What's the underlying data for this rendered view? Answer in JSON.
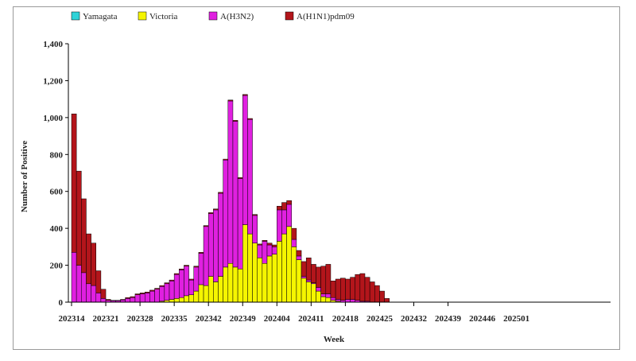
{
  "chart_data": {
    "type": "bar",
    "stacked": true,
    "title": "",
    "xlabel": "Week",
    "ylabel": "Number of Positive",
    "ylim": [
      0,
      1400
    ],
    "yticks": [
      0,
      200,
      400,
      600,
      800,
      1000,
      1200,
      1400
    ],
    "ytick_labels": [
      "0",
      "200",
      "400",
      "600",
      "800",
      "1,000",
      "1,200",
      "1,400"
    ],
    "grid": false,
    "legend_position": "top-left",
    "x_tick_labels": [
      "202314",
      "202321",
      "202328",
      "202335",
      "202342",
      "202349",
      "202404",
      "202411",
      "202418",
      "202425",
      "202432",
      "202439",
      "202446",
      "202501"
    ],
    "x_tick_every": 7,
    "total_weeks": 74,
    "colors": {
      "Yamagata": "#2fd3d8",
      "Victoria": "#f5f500",
      "A(H3N2)": "#e020e0",
      "A(H1N1)pdm09": "#b3151b"
    },
    "series": [
      {
        "name": "Yamagata",
        "values": [
          0,
          0,
          0,
          0,
          0,
          0,
          0,
          0,
          0,
          0,
          0,
          0,
          0,
          0,
          0,
          0,
          0,
          0,
          0,
          0,
          0,
          0,
          0,
          0,
          0,
          0,
          0,
          0,
          0,
          0,
          0,
          0,
          0,
          0,
          0,
          0,
          0,
          0,
          0,
          0,
          0,
          0,
          0,
          0,
          0,
          0,
          0,
          0,
          0,
          0,
          0,
          0,
          0,
          0,
          0,
          0,
          0,
          0,
          0,
          0,
          0,
          0,
          0,
          0,
          0,
          0,
          0,
          0,
          0,
          0,
          0,
          0,
          0,
          0
        ]
      },
      {
        "name": "Victoria",
        "values": [
          0,
          0,
          0,
          0,
          0,
          0,
          0,
          0,
          0,
          0,
          0,
          0,
          0,
          0,
          0,
          0,
          0,
          0,
          5,
          10,
          15,
          20,
          25,
          35,
          40,
          60,
          95,
          90,
          140,
          110,
          140,
          190,
          210,
          190,
          180,
          420,
          370,
          320,
          240,
          210,
          250,
          260,
          330,
          370,
          410,
          300,
          230,
          130,
          110,
          100,
          60,
          30,
          25,
          10,
          5,
          0,
          0,
          0,
          0,
          0,
          0,
          0,
          0,
          0,
          0,
          0,
          0,
          0,
          0,
          0,
          0,
          0,
          0,
          0
        ]
      },
      {
        "name": "A(H3N2)",
        "values": [
          270,
          200,
          160,
          100,
          90,
          50,
          20,
          10,
          8,
          8,
          12,
          20,
          25,
          40,
          45,
          50,
          60,
          70,
          80,
          90,
          100,
          130,
          150,
          160,
          80,
          130,
          170,
          320,
          340,
          390,
          450,
          580,
          880,
          790,
          490,
          700,
          620,
          150,
          70,
          120,
          60,
          40,
          170,
          130,
          120,
          40,
          20,
          10,
          10,
          5,
          20,
          15,
          20,
          15,
          10,
          10,
          15,
          15,
          10,
          5,
          5,
          0,
          0,
          0,
          0,
          0,
          0,
          0,
          0,
          0,
          0,
          0,
          0,
          0
        ]
      },
      {
        "name": "A(H1N1)pdm09",
        "values": [
          750,
          510,
          400,
          270,
          230,
          120,
          50,
          5,
          2,
          2,
          3,
          5,
          5,
          5,
          5,
          5,
          5,
          5,
          5,
          5,
          5,
          5,
          5,
          5,
          5,
          5,
          5,
          5,
          5,
          5,
          5,
          5,
          5,
          5,
          5,
          5,
          5,
          5,
          5,
          5,
          10,
          10,
          20,
          40,
          20,
          60,
          30,
          80,
          120,
          100,
          110,
          150,
          160,
          90,
          110,
          120,
          110,
          120,
          140,
          150,
          130,
          110,
          90,
          60,
          20,
          0,
          0,
          0,
          0,
          0,
          0,
          0,
          0,
          0
        ]
      }
    ],
    "legend": [
      "Yamagata",
      "Victoria",
      "A(H3N2)",
      "A(H1N1)pdm09"
    ]
  }
}
